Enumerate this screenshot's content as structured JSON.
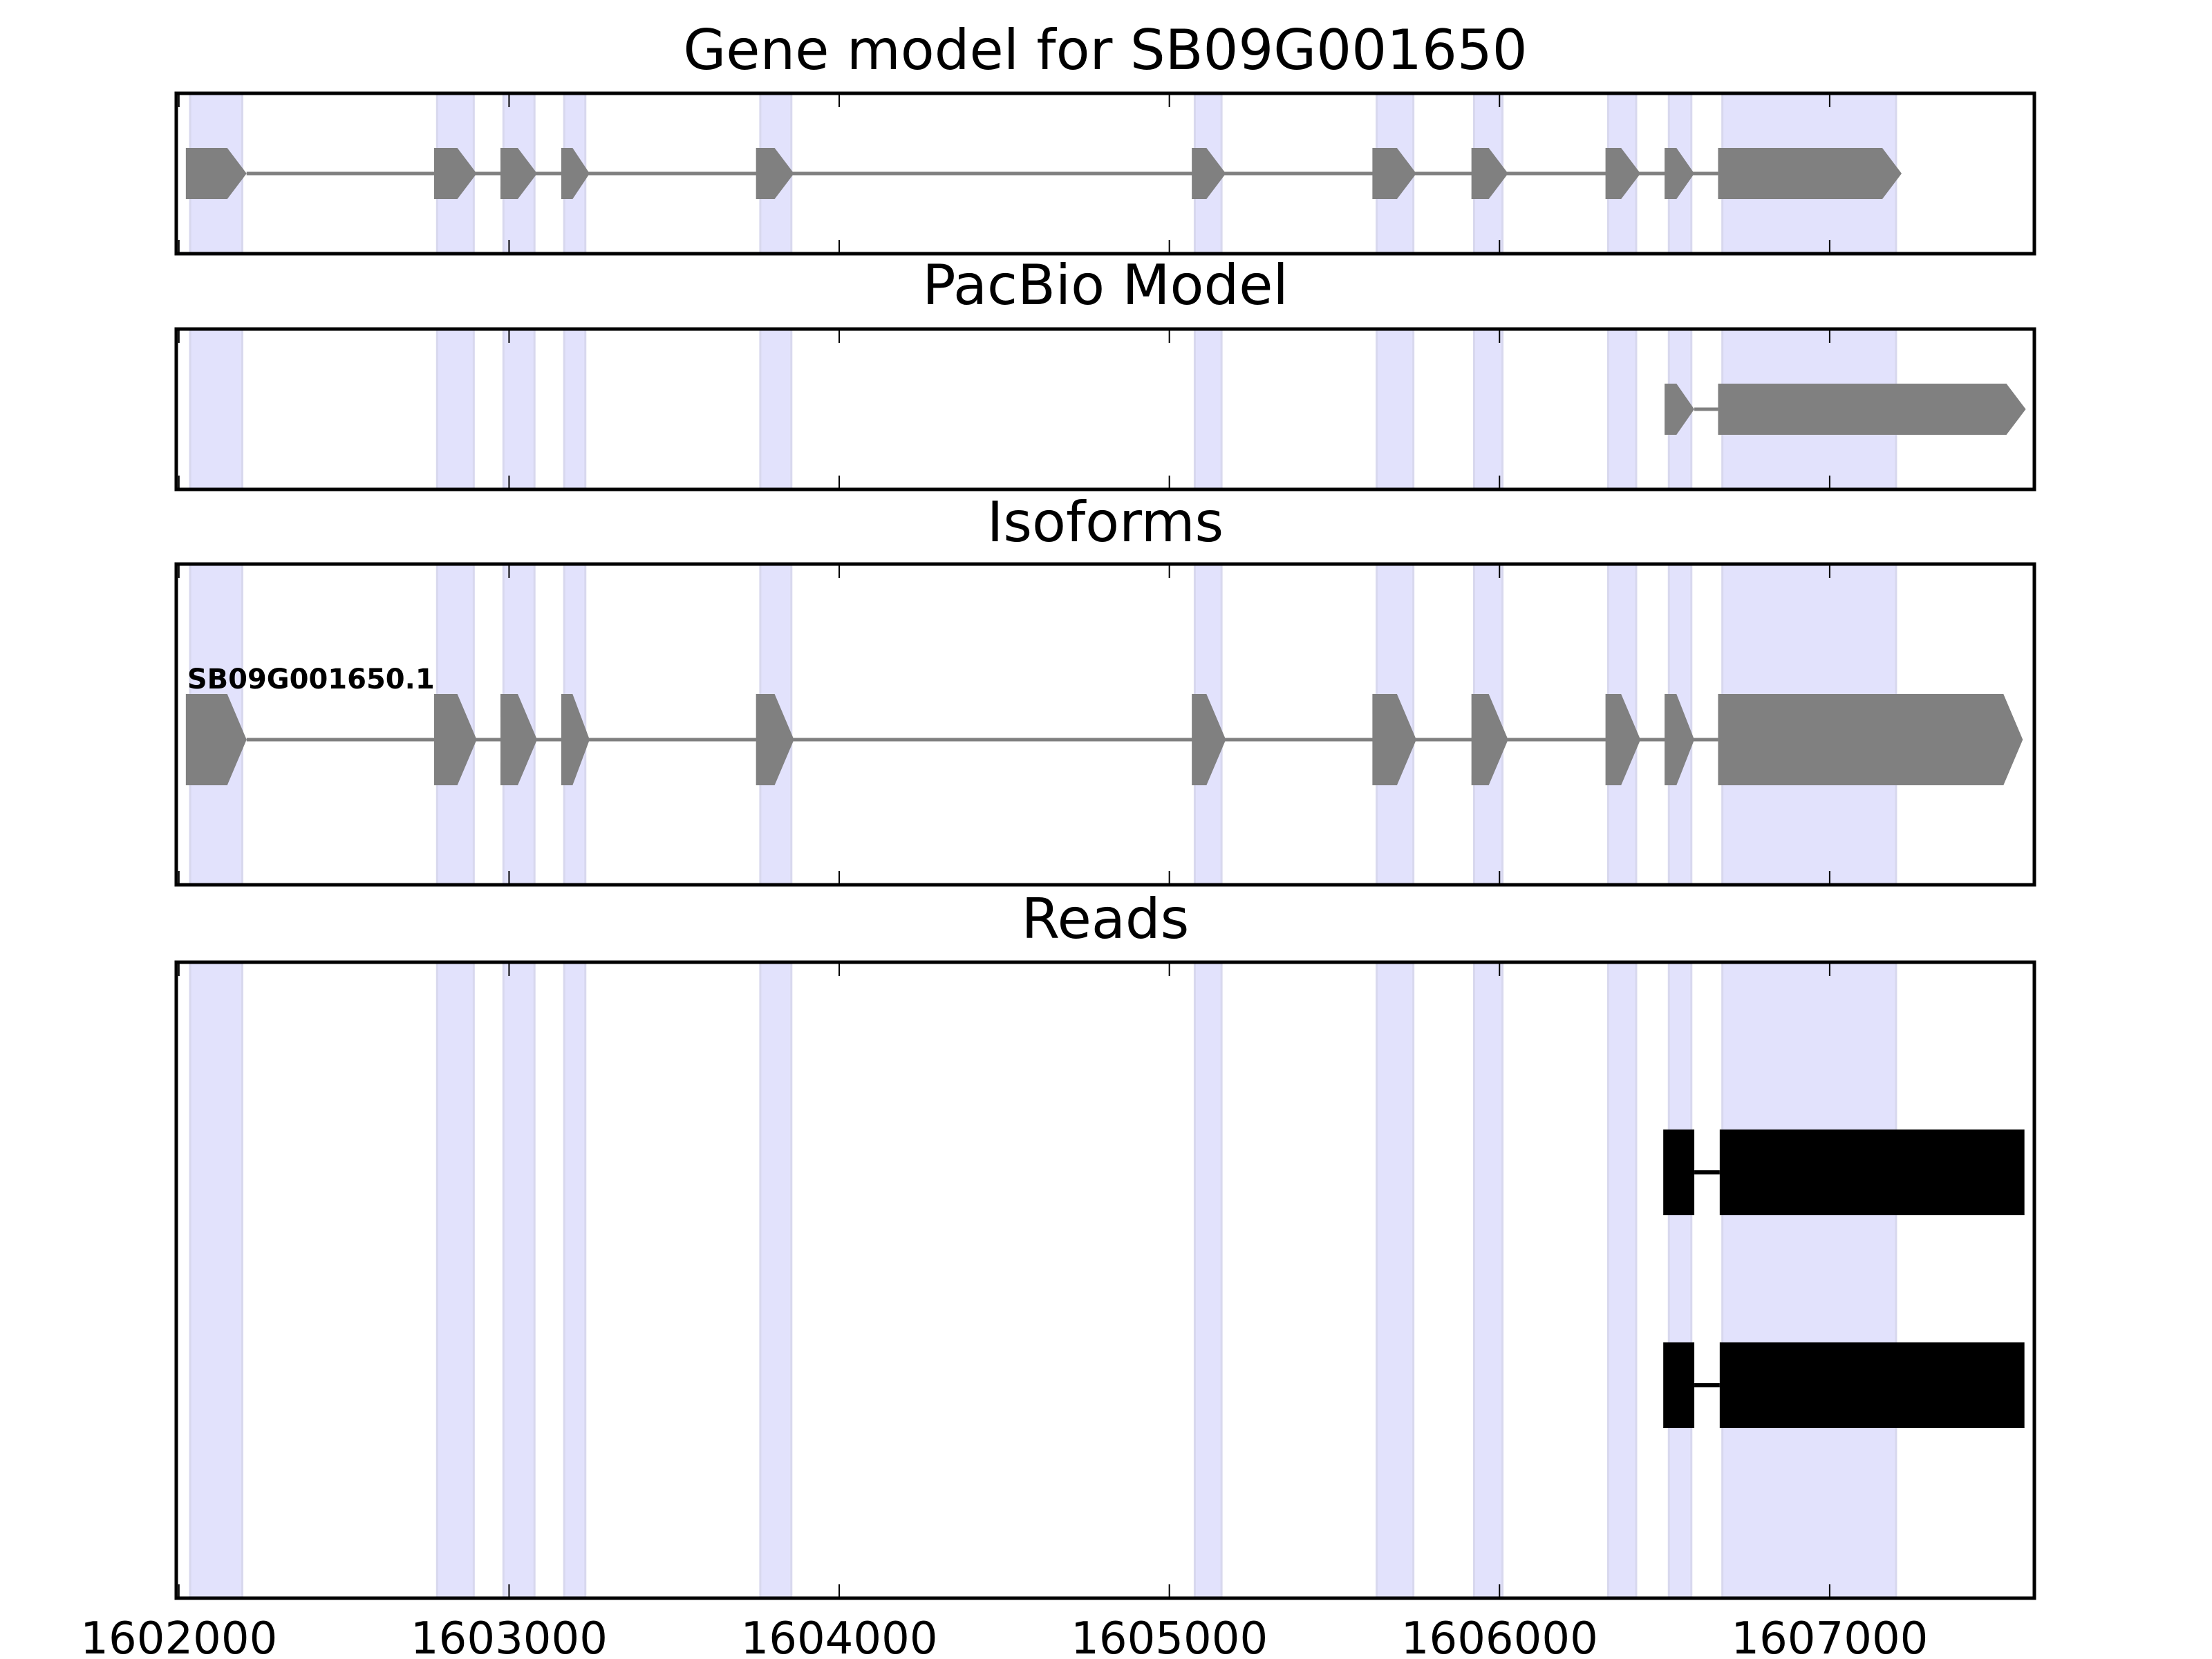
{
  "chart_data": {
    "type": "gene-track",
    "xlim": [
      1601992,
      1607620
    ],
    "xticks": [
      1602000,
      1603000,
      1604000,
      1605000,
      1606000,
      1607000
    ],
    "xtick_labels": [
      "1602000",
      "1603000",
      "1604000",
      "1605000",
      "1606000",
      "1607000"
    ],
    "shading_color": "#e2e2fc",
    "shaded_regions": [
      [
        1602034,
        1602192
      ],
      [
        1602782,
        1602893
      ],
      [
        1602983,
        1603077
      ],
      [
        1603167,
        1603231
      ],
      [
        1603761,
        1603855
      ],
      [
        1605077,
        1605158
      ],
      [
        1605628,
        1605739
      ],
      [
        1605923,
        1606009
      ],
      [
        1606329,
        1606414
      ],
      [
        1606513,
        1606581
      ],
      [
        1606675,
        1607201
      ]
    ],
    "panels": [
      {
        "title": "Gene model for SB09G001650",
        "kind": "gene",
        "color": "#808080",
        "exons": [
          [
            1602021,
            1602205
          ],
          [
            1602773,
            1602902
          ],
          [
            1602974,
            1603085
          ],
          [
            1603158,
            1603244
          ],
          [
            1603748,
            1603863
          ],
          [
            1605068,
            1605171
          ],
          [
            1605615,
            1605748
          ],
          [
            1605915,
            1606026
          ],
          [
            1606321,
            1606427
          ],
          [
            1606500,
            1606590
          ],
          [
            1606662,
            1607218
          ]
        ]
      },
      {
        "title": "PacBio Model",
        "kind": "gene",
        "color": "#808080",
        "exons": [
          [
            1606500,
            1606590
          ],
          [
            1606662,
            1607594
          ]
        ]
      },
      {
        "title": "Isoforms",
        "kind": "gene",
        "color": "#808080",
        "label": "SB09G001650.1",
        "exons": [
          [
            1602021,
            1602205
          ],
          [
            1602773,
            1602902
          ],
          [
            1602974,
            1603085
          ],
          [
            1603158,
            1603244
          ],
          [
            1603748,
            1603863
          ],
          [
            1605068,
            1605171
          ],
          [
            1605615,
            1605748
          ],
          [
            1605915,
            1606026
          ],
          [
            1606321,
            1606427
          ],
          [
            1606500,
            1606590
          ],
          [
            1606662,
            1607585
          ]
        ]
      },
      {
        "title": "Reads",
        "kind": "reads",
        "color": "#000000",
        "reads": [
          [
            [
              1606496,
              1606590
            ],
            [
              1606667,
              1607590
            ]
          ],
          [
            [
              1606496,
              1606590
            ],
            [
              1606667,
              1607590
            ]
          ]
        ]
      }
    ]
  }
}
